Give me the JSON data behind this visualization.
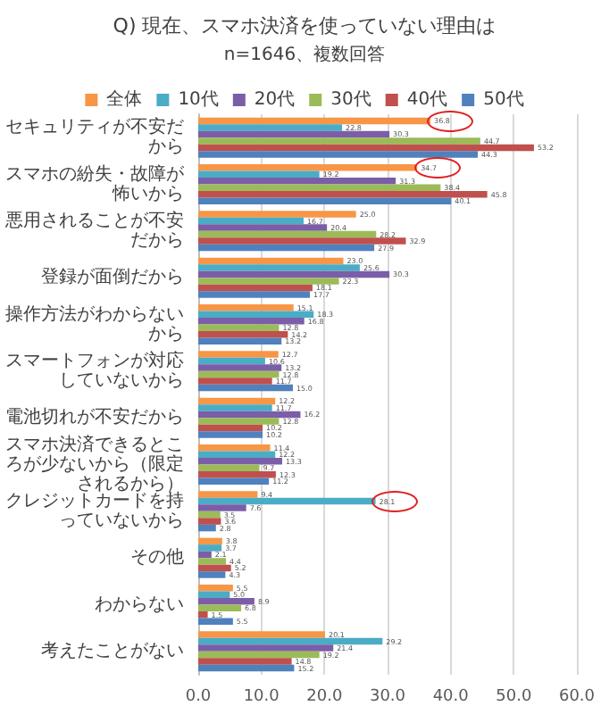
{
  "chart_data": {
    "type": "bar",
    "orientation": "horizontal",
    "title": "Q) 現在、スマホ決済を使っていない理由は",
    "subtitle": "n=1646、複数回答",
    "categories": [
      "セキュリティが不安だから",
      "スマホの紛失・故障が怖いから",
      "悪用されることが不安だから",
      "登録が面倒だから",
      "操作方法がわからないから",
      "スマートフォンが対応していないから",
      "電池切れが不安だから",
      "スマホ決済できるところが少ないから（限定されるから）",
      "クレジットカードを持っていないから",
      "その他",
      "わからない",
      "考えたことがない"
    ],
    "series": [
      {
        "name": "全体",
        "color": "#f79646",
        "values": [
          36.8,
          34.7,
          25.0,
          23.0,
          15.1,
          12.7,
          12.2,
          11.4,
          9.4,
          3.8,
          5.5,
          20.1
        ],
        "value_labels": [
          "36.8",
          "34.7",
          "25.0",
          "23.0",
          "15.1",
          "12.7",
          "12.2",
          "11.4",
          "9.4",
          "3.8",
          "5.5",
          "20.1"
        ]
      },
      {
        "name": "10代",
        "color": "#4bacc6",
        "values": [
          22.8,
          19.2,
          16.7,
          25.6,
          18.3,
          10.6,
          11.7,
          12.2,
          28.1,
          3.7,
          5.0,
          29.2
        ],
        "value_labels": [
          "22.8",
          "19.2",
          "16.7",
          "25.6",
          "18.3",
          "10.6",
          "11.7",
          "12.2",
          "28.1",
          "3.7",
          "5.0",
          "29.2"
        ]
      },
      {
        "name": "20代",
        "color": "#7b5ea7",
        "values": [
          30.3,
          31.3,
          20.4,
          30.3,
          16.8,
          13.2,
          16.2,
          13.3,
          7.6,
          2.1,
          8.9,
          21.4
        ],
        "value_labels": [
          "30.3",
          "31.3",
          "20.4",
          "30.3",
          "16.8",
          "13.2",
          "16.2",
          "13.3",
          "7.6",
          "2.1",
          "8.9",
          "21.4"
        ]
      },
      {
        "name": "30代",
        "color": "#9bbb59",
        "values": [
          44.7,
          38.4,
          28.2,
          22.3,
          12.8,
          12.8,
          12.8,
          9.7,
          3.5,
          4.4,
          6.8,
          19.2
        ],
        "value_labels": [
          "44.7",
          "38.4",
          "28.2",
          "22.3",
          "12.8",
          "12.8",
          "12.8",
          "9.7",
          "3.5",
          "4.4",
          "6.8",
          "19.2"
        ]
      },
      {
        "name": "40代",
        "color": "#c0504d",
        "values": [
          53.2,
          45.8,
          32.9,
          18.1,
          14.2,
          11.7,
          10.2,
          12.3,
          3.6,
          5.2,
          1.5,
          14.8
        ],
        "value_labels": [
          "53.2",
          "45.8",
          "32.9",
          "18.1",
          "14.2",
          "11.7",
          "10.2",
          "12.3",
          "3.6",
          "5.2",
          "1.5",
          "14.8"
        ]
      },
      {
        "name": "50代",
        "color": "#4f81bd",
        "values": [
          44.3,
          40.1,
          27.9,
          17.7,
          13.2,
          15.0,
          10.2,
          11.2,
          2.8,
          4.3,
          5.5,
          15.2
        ],
        "value_labels": [
          "44.3",
          "40.1",
          "27.9",
          "17.7",
          "13.2",
          "15.0",
          "10.2",
          "11.2",
          "2.8",
          "4.3",
          "5.5",
          "15.2"
        ]
      }
    ],
    "xlim": [
      0,
      60
    ],
    "xticks": [
      {
        "value": 0,
        "label": "0.0"
      },
      {
        "value": 10,
        "label": "10.0"
      },
      {
        "value": 20,
        "label": "20.0"
      },
      {
        "value": 30,
        "label": "30.0"
      },
      {
        "value": 40,
        "label": "40.0"
      },
      {
        "value": 50,
        "label": "50.0"
      },
      {
        "value": 60,
        "label": "60.0"
      }
    ],
    "grid": "x",
    "legend": "top"
  }
}
